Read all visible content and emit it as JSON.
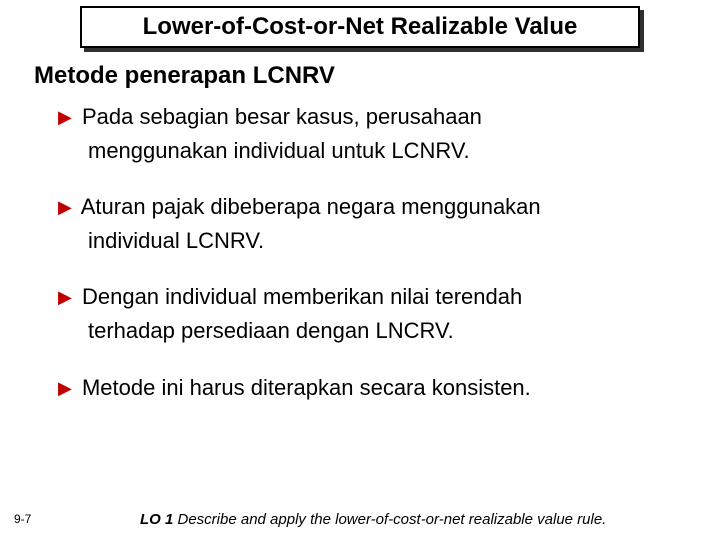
{
  "colors": {
    "background": "#ffffff",
    "title_border": "#000000",
    "title_shadow": "#303030",
    "bullet_arrow": "#c00000",
    "text": "#000000"
  },
  "typography": {
    "title_fontsize": 24,
    "subtitle_fontsize": 24,
    "body_fontsize": 22,
    "pagenum_fontsize": 12,
    "lo_fontsize": 15,
    "font_family": "Arial"
  },
  "title": "Lower-of-Cost-or-Net Realizable Value",
  "subtitle": "Metode penerapan LCNRV",
  "bullets": [
    {
      "line1": "Pada sebagian besar kasus, perusahaan",
      "line2": "menggunakan individual untuk LCNRV."
    },
    {
      "line1": "Aturan pajak dibeberapa negara menggunakan",
      "line2": "individual LCNRV."
    },
    {
      "line1": "Dengan individual memberikan nilai terendah",
      "line2": "terhadap persediaan dengan LNCRV."
    },
    {
      "line1": "Metode ini harus diterapkan secara konsisten.",
      "line2": ""
    }
  ],
  "page_number": "9-7",
  "lo": {
    "label": "LO 1",
    "text": "  Describe and apply the lower-of-cost-or-net realizable value rule."
  }
}
